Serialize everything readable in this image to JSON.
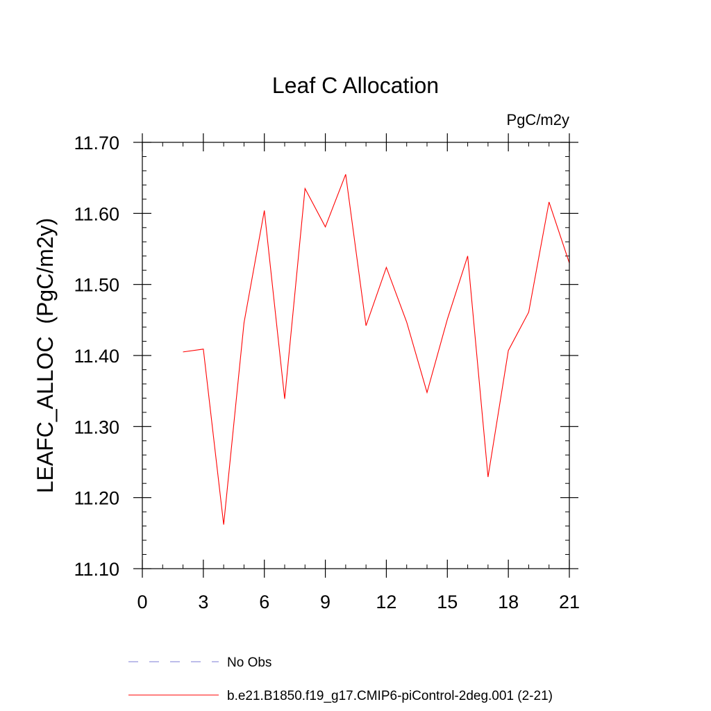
{
  "chart_data": {
    "type": "line",
    "title": "Leaf C Allocation",
    "units_label": "PgC/m2y",
    "xlabel": "",
    "ylabel": "LEAFC_ALLOC  (PgC/m2y)",
    "xlim": [
      0,
      21
    ],
    "ylim": [
      11.1,
      11.7
    ],
    "x_ticks": [
      0,
      3,
      6,
      9,
      12,
      15,
      18,
      21
    ],
    "x_tick_labels": [
      "0",
      "3",
      "6",
      "9",
      "12",
      "15",
      "18",
      "21"
    ],
    "y_ticks": [
      11.1,
      11.2,
      11.3,
      11.4,
      11.5,
      11.6,
      11.7
    ],
    "y_tick_labels": [
      "11.10",
      "11.20",
      "11.30",
      "11.40",
      "11.50",
      "11.60",
      "11.70"
    ],
    "grid": false,
    "series": [
      {
        "name": "b.e21.B1850.f19_g17.CMIP6-piControl-2deg.001 (2-21)",
        "color": "#ff0000",
        "style": "solid",
        "x": [
          2,
          3,
          4,
          5,
          6,
          7,
          8,
          9,
          10,
          11,
          12,
          13,
          14,
          15,
          16,
          17,
          18,
          19,
          20,
          21
        ],
        "values": [
          11.405,
          11.409,
          11.162,
          11.446,
          11.604,
          11.339,
          11.635,
          11.581,
          11.655,
          11.442,
          11.524,
          11.447,
          11.348,
          11.451,
          11.54,
          11.229,
          11.407,
          11.461,
          11.616,
          11.53
        ]
      }
    ],
    "legend": [
      {
        "label": "No Obs",
        "color": "#7b7bd6",
        "style": "dashed"
      },
      {
        "label": "b.e21.B1850.f19_g17.CMIP6-piControl-2deg.001 (2-21)",
        "color": "#ff0000",
        "style": "solid"
      }
    ],
    "legend_position": "bottom-left"
  }
}
